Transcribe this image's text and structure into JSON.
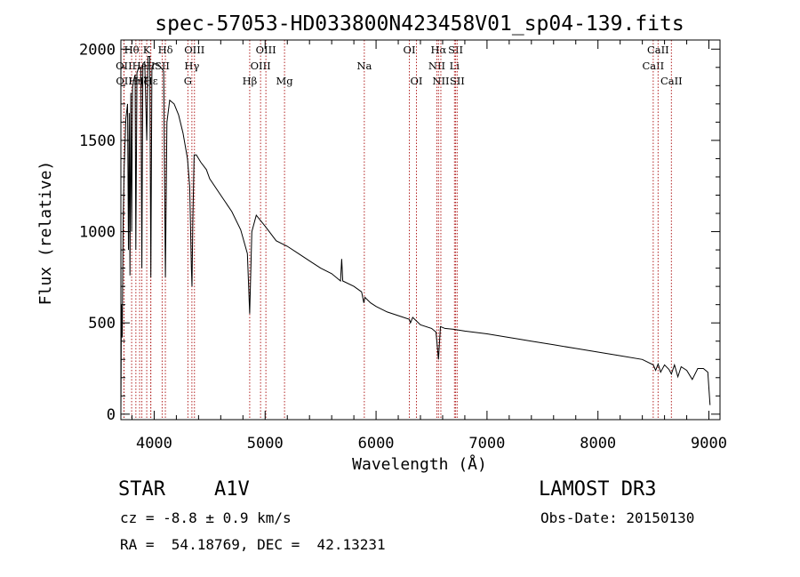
{
  "chart_data": {
    "type": "line",
    "title": "spec-57053-HD033800N423458V01_sp04-139.fits",
    "xlabel": "Wavelength (Å)",
    "ylabel": "Flux (relative)",
    "xlim": [
      3700,
      9100
    ],
    "ylim": [
      -30,
      2050
    ],
    "xticks": [
      4000,
      5000,
      6000,
      7000,
      8000,
      9000
    ],
    "yticks": [
      0,
      500,
      1000,
      1500,
      2000
    ],
    "tick_labels_x": [
      "4000",
      "5000",
      "6000",
      "7000",
      "8000",
      "9000"
    ],
    "tick_labels_y": [
      "0",
      "500",
      "1000",
      "1500",
      "2000"
    ],
    "grid": false,
    "line_color": "#000000",
    "marker_color": "#b22222",
    "series": [
      {
        "name": "flux",
        "x": [
          3700,
          3705,
          3712,
          3720,
          3730,
          3745,
          3760,
          3768,
          3775,
          3782,
          3790,
          3797,
          3805,
          3815,
          3828,
          3835,
          3845,
          3860,
          3880,
          3889,
          3898,
          3915,
          3933,
          3945,
          3960,
          3970,
          3980,
          4000,
          4030,
          4060,
          4085,
          4101,
          4115,
          4140,
          4180,
          4220,
          4260,
          4300,
          4320,
          4335,
          4341,
          4348,
          4360,
          4380,
          4420,
          4471,
          4500,
          4600,
          4700,
          4780,
          4840,
          4861,
          4880,
          4920,
          5000,
          5100,
          5200,
          5300,
          5400,
          5500,
          5600,
          5680,
          5690,
          5700,
          5800,
          5870,
          5890,
          5900,
          5950,
          6000,
          6100,
          6200,
          6300,
          6310,
          6330,
          6400,
          6500,
          6540,
          6563,
          6580,
          6620,
          6700,
          6800,
          7000,
          7200,
          7400,
          7600,
          7800,
          8000,
          8200,
          8400,
          8498,
          8520,
          8542,
          8565,
          8600,
          8640,
          8662,
          8690,
          8720,
          8750,
          8800,
          8850,
          8900,
          8950,
          8990,
          9010
        ],
        "y": [
          0,
          600,
          420,
          1050,
          1350,
          1620,
          1700,
          900,
          1650,
          760,
          1760,
          1000,
          1790,
          1830,
          1860,
          900,
          1870,
          1900,
          1900,
          800,
          1920,
          1930,
          1500,
          1960,
          1960,
          750,
          1900,
          1920,
          1920,
          1900,
          1880,
          750,
          1600,
          1720,
          1700,
          1640,
          1540,
          1400,
          1250,
          800,
          700,
          1050,
          1420,
          1420,
          1380,
          1340,
          1290,
          1200,
          1110,
          1010,
          880,
          550,
          1000,
          1090,
          1030,
          950,
          920,
          880,
          840,
          800,
          770,
          730,
          850,
          730,
          700,
          670,
          610,
          640,
          610,
          590,
          560,
          540,
          520,
          500,
          530,
          490,
          470,
          450,
          300,
          480,
          470,
          465,
          455,
          440,
          420,
          400,
          380,
          360,
          340,
          320,
          300,
          270,
          240,
          275,
          230,
          270,
          245,
          220,
          270,
          205,
          260,
          240,
          190,
          250,
          250,
          230,
          50
        ]
      }
    ],
    "line_markers": [
      {
        "w": 3727,
        "top": "OII",
        "row": 1
      },
      {
        "w": 3729,
        "top": "OII",
        "row": 2
      },
      {
        "w": 3797,
        "top": "Hθ",
        "row": 0
      },
      {
        "w": 3835,
        "top": "Hη",
        "row": 2
      },
      {
        "w": 3869,
        "top": "He",
        "row": 1
      },
      {
        "w": 3889,
        "top": "Hζ",
        "row": 2
      },
      {
        "w": 3933,
        "top": "K",
        "row": 0
      },
      {
        "w": 3968,
        "top": "H",
        "row": 1
      },
      {
        "w": 3970,
        "top": "Hε",
        "row": 2
      },
      {
        "w": 4072,
        "top": "SII",
        "row": 1
      },
      {
        "w": 4101,
        "top": "Hδ",
        "row": 0
      },
      {
        "w": 4304,
        "top": "G",
        "row": 2
      },
      {
        "w": 4340,
        "top": "Hγ",
        "row": 1
      },
      {
        "w": 4363,
        "top": "OIII",
        "row": 0
      },
      {
        "w": 4861,
        "top": "Hβ",
        "row": 2
      },
      {
        "w": 4959,
        "top": "OIII",
        "row": 1
      },
      {
        "w": 5007,
        "top": "OIII",
        "row": 0
      },
      {
        "w": 5175,
        "top": "Mg",
        "row": 2
      },
      {
        "w": 5894,
        "top": "Na",
        "row": 1
      },
      {
        "w": 6300,
        "top": "OI",
        "row": 0
      },
      {
        "w": 6364,
        "top": "OI",
        "row": 2
      },
      {
        "w": 6548,
        "top": "NII",
        "row": 1
      },
      {
        "w": 6563,
        "top": "Hα",
        "row": 0
      },
      {
        "w": 6584,
        "top": "NII",
        "row": 2
      },
      {
        "w": 6707,
        "top": "Li",
        "row": 1
      },
      {
        "w": 6717,
        "top": "SII",
        "row": 0
      },
      {
        "w": 6731,
        "top": "SII",
        "row": 2
      },
      {
        "w": 8498,
        "top": "CaII",
        "row": 1
      },
      {
        "w": 8542,
        "top": "CaII",
        "row": 0
      },
      {
        "w": 8662,
        "top": "CaII",
        "row": 2
      }
    ]
  },
  "info": {
    "class_label": "STAR",
    "subclass": "A1V",
    "survey": "LAMOST DR3",
    "redshift": "cz = -8.8 ± 0.9 km/s",
    "obs_date": "Obs-Date: 20150130",
    "coords": "RA =  54.18769, DEC =  42.13231"
  }
}
